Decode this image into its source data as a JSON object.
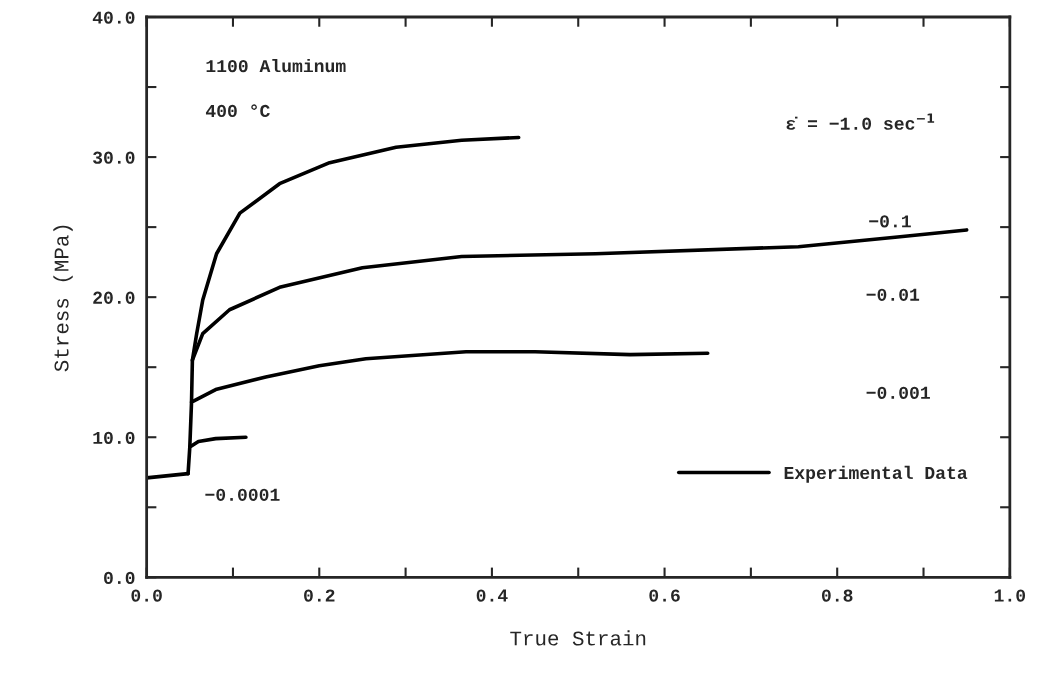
{
  "chart_data": {
    "type": "line",
    "xlabel": "True Strain",
    "ylabel": "Stress (MPa)",
    "xlim": [
      0,
      1
    ],
    "ylim": [
      0,
      40
    ],
    "xticks": [
      {
        "value": 0,
        "label": "0.0"
      },
      {
        "value": 0.1,
        "label": null
      },
      {
        "value": 0.2,
        "label": "0.2"
      },
      {
        "value": 0.3,
        "label": null
      },
      {
        "value": 0.4,
        "label": "0.4"
      },
      {
        "value": 0.5,
        "label": null
      },
      {
        "value": 0.6,
        "label": "0.6"
      },
      {
        "value": 0.7,
        "label": null
      },
      {
        "value": 0.8,
        "label": "0.8"
      },
      {
        "value": 0.9,
        "label": null
      },
      {
        "value": 1,
        "label": "1.0"
      }
    ],
    "yticks": [
      {
        "value": 0,
        "label": "0.0"
      },
      {
        "value": 5,
        "label": null
      },
      {
        "value": 10,
        "label": "10.0"
      },
      {
        "value": 15,
        "label": null
      },
      {
        "value": 20,
        "label": "20.0"
      },
      {
        "value": 25,
        "label": null
      },
      {
        "value": 30,
        "label": "30.0"
      },
      {
        "value": 35,
        "label": null
      },
      {
        "value": 40,
        "label": "40.0"
      }
    ],
    "grid": false,
    "legend": "bottom right",
    "line_style": "solid",
    "series": [
      {
        "name": "Experimental Data",
        "color": "#000000",
        "x": [
          0,
          0.048
        ],
        "values": [
          7.1,
          7.4
        ]
      },
      {
        "color": "#000000",
        "x": [
          0.048,
          0.05,
          0.06,
          0.08,
          0.115
        ],
        "values": [
          7.4,
          9.3,
          9.7,
          9.9,
          10.0
        ]
      },
      {
        "color": "#000000",
        "x": [
          0.05,
          0.052,
          0.08,
          0.138,
          0.2,
          0.254,
          0.37,
          0.45,
          0.56,
          0.65
        ],
        "values": [
          9.3,
          12.5,
          13.4,
          14.3,
          15.1,
          15.6,
          16.1,
          16.1,
          15.9,
          16.0
        ]
      },
      {
        "color": "#000000",
        "x": [
          0.052,
          0.053,
          0.065,
          0.096,
          0.154,
          0.25,
          0.365,
          0.52,
          0.755,
          0.87,
          0.95
        ],
        "values": [
          12.5,
          15.5,
          17.4,
          19.1,
          20.7,
          22.1,
          22.9,
          23.1,
          23.6,
          24.3,
          24.8
        ]
      },
      {
        "color": "#000000",
        "x": [
          0.053,
          0.058,
          0.065,
          0.081,
          0.108,
          0.154,
          0.212,
          0.289,
          0.365,
          0.431
        ],
        "values": [
          15.5,
          17.4,
          19.8,
          23.1,
          26.0,
          28.1,
          29.6,
          30.7,
          31.2,
          31.4
        ]
      }
    ],
    "annotations": [
      "1100 Aluminum",
      "400 °C",
      "ε̇ = −1.0 sec$^{−1}$",
      "−0.1",
      "−0.01",
      "−0.001",
      "−0.0001"
    ]
  }
}
